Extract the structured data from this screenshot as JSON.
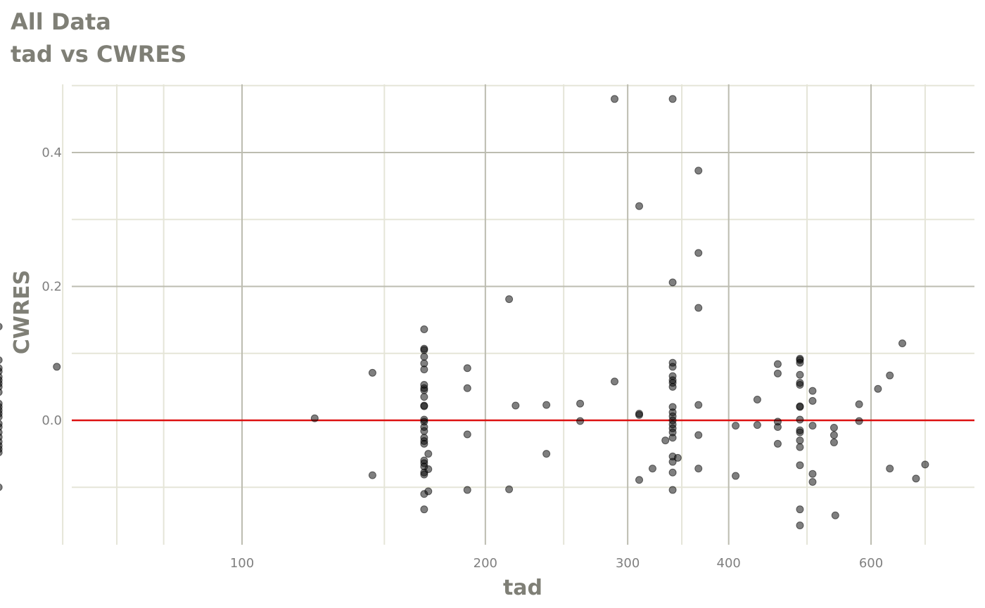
{
  "colors": {
    "major_grid": "#bcbcb0",
    "minor_grid": "#e5e5d8",
    "ref_line": "#dd1111",
    "point": "#000000",
    "text": "#808080",
    "title": "#7f7f76"
  },
  "chart_data": {
    "type": "scatter",
    "title": "All Data",
    "subtitle": "tad vs CWRES",
    "xlabel": "tad",
    "ylabel": "CWRES",
    "x_scale": "log",
    "xlim": [
      50,
      720
    ],
    "ylim": [
      -0.19,
      0.5
    ],
    "x_ticks": [
      100,
      200,
      300,
      400,
      600
    ],
    "x_tick_labels": [
      "100",
      "200",
      "300",
      "400",
      "600"
    ],
    "y_ticks": [
      0.0,
      0.2,
      0.4
    ],
    "y_tick_labels": [
      "0.0",
      "0.2",
      "0.4"
    ],
    "grid": true,
    "reference_line": {
      "y": 0,
      "color": "red"
    },
    "points": [
      [
        50,
        0.14
      ],
      [
        50,
        0.09
      ],
      [
        50,
        0.078
      ],
      [
        50,
        0.073
      ],
      [
        50,
        0.065
      ],
      [
        50,
        0.06
      ],
      [
        50,
        0.055
      ],
      [
        50,
        0.05
      ],
      [
        50,
        0.042
      ],
      [
        50,
        0.025
      ],
      [
        50,
        0.02
      ],
      [
        50,
        0.015
      ],
      [
        50,
        0.01
      ],
      [
        50,
        0.005
      ],
      [
        50,
        -0.005
      ],
      [
        50,
        -0.01
      ],
      [
        50,
        -0.018
      ],
      [
        50,
        -0.025
      ],
      [
        50,
        -0.032
      ],
      [
        50,
        -0.038
      ],
      [
        50,
        -0.043
      ],
      [
        50,
        -0.048
      ],
      [
        50,
        -0.1
      ],
      [
        59,
        0.08
      ],
      [
        123,
        0.003
      ],
      [
        145,
        0.071
      ],
      [
        145,
        -0.082
      ],
      [
        168,
        0.136
      ],
      [
        168,
        0.107
      ],
      [
        168,
        0.105
      ],
      [
        168,
        0.095
      ],
      [
        168,
        0.085
      ],
      [
        168,
        0.076
      ],
      [
        168,
        0.053
      ],
      [
        168,
        0.048
      ],
      [
        168,
        0.045
      ],
      [
        168,
        0.035
      ],
      [
        168,
        0.022
      ],
      [
        168,
        0.021
      ],
      [
        168,
        0.001
      ],
      [
        168,
        -0.002
      ],
      [
        168,
        -0.01
      ],
      [
        168,
        -0.016
      ],
      [
        168,
        -0.026
      ],
      [
        168,
        -0.031
      ],
      [
        168,
        -0.035
      ],
      [
        168,
        -0.06
      ],
      [
        168,
        -0.064
      ],
      [
        168,
        -0.069
      ],
      [
        168,
        -0.078
      ],
      [
        168,
        -0.081
      ],
      [
        168,
        -0.11
      ],
      [
        168,
        -0.133
      ],
      [
        170,
        -0.05
      ],
      [
        170,
        -0.073
      ],
      [
        170,
        -0.106
      ],
      [
        190,
        0.078
      ],
      [
        190,
        0.048
      ],
      [
        190,
        -0.021
      ],
      [
        190,
        -0.104
      ],
      [
        214,
        0.181
      ],
      [
        214,
        -0.103
      ],
      [
        218,
        0.022
      ],
      [
        238,
        0.023
      ],
      [
        238,
        -0.05
      ],
      [
        262,
        0.025
      ],
      [
        262,
        -0.001
      ],
      [
        289,
        0.48
      ],
      [
        289,
        0.058
      ],
      [
        310,
        0.32
      ],
      [
        310,
        0.01
      ],
      [
        310,
        0.008
      ],
      [
        310,
        -0.089
      ],
      [
        322,
        -0.072
      ],
      [
        334,
        -0.03
      ],
      [
        341,
        0.48
      ],
      [
        341,
        0.206
      ],
      [
        341,
        0.086
      ],
      [
        341,
        0.08
      ],
      [
        341,
        0.066
      ],
      [
        341,
        0.06
      ],
      [
        341,
        0.056
      ],
      [
        341,
        0.05
      ],
      [
        341,
        0.02
      ],
      [
        341,
        0.012
      ],
      [
        341,
        0.006
      ],
      [
        341,
        0.0
      ],
      [
        341,
        -0.006
      ],
      [
        341,
        -0.012
      ],
      [
        341,
        -0.018
      ],
      [
        341,
        -0.026
      ],
      [
        341,
        -0.054
      ],
      [
        341,
        -0.062
      ],
      [
        341,
        -0.078
      ],
      [
        341,
        -0.104
      ],
      [
        346,
        -0.056
      ],
      [
        367,
        0.373
      ],
      [
        367,
        0.25
      ],
      [
        367,
        0.168
      ],
      [
        367,
        0.023
      ],
      [
        367,
        -0.022
      ],
      [
        367,
        -0.072
      ],
      [
        408,
        -0.008
      ],
      [
        408,
        -0.083
      ],
      [
        434,
        0.031
      ],
      [
        434,
        -0.007
      ],
      [
        460,
        0.084
      ],
      [
        460,
        0.07
      ],
      [
        460,
        -0.002
      ],
      [
        460,
        -0.01
      ],
      [
        460,
        -0.035
      ],
      [
        490,
        0.092
      ],
      [
        490,
        0.09
      ],
      [
        490,
        0.086
      ],
      [
        490,
        0.068
      ],
      [
        490,
        0.056
      ],
      [
        490,
        0.053
      ],
      [
        490,
        0.021
      ],
      [
        490,
        0.02
      ],
      [
        490,
        0.001
      ],
      [
        490,
        -0.015
      ],
      [
        490,
        -0.018
      ],
      [
        490,
        -0.03
      ],
      [
        490,
        -0.04
      ],
      [
        490,
        -0.067
      ],
      [
        490,
        -0.133
      ],
      [
        490,
        -0.157
      ],
      [
        508,
        0.044
      ],
      [
        508,
        0.029
      ],
      [
        508,
        -0.008
      ],
      [
        508,
        -0.08
      ],
      [
        508,
        -0.092
      ],
      [
        540,
        -0.011
      ],
      [
        540,
        -0.022
      ],
      [
        540,
        -0.033
      ],
      [
        542,
        -0.142
      ],
      [
        580,
        0.024
      ],
      [
        580,
        -0.001
      ],
      [
        612,
        0.047
      ],
      [
        633,
        0.067
      ],
      [
        633,
        -0.072
      ],
      [
        656,
        0.115
      ],
      [
        682,
        -0.087
      ],
      [
        700,
        -0.066
      ]
    ]
  }
}
